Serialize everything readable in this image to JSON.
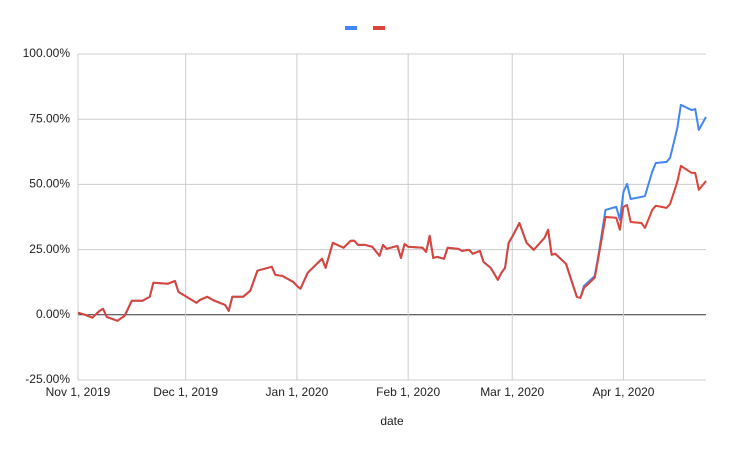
{
  "chart_data": {
    "type": "line",
    "x_label": "date",
    "x": [
      "2019-11-01",
      "2019-11-03",
      "2019-11-05",
      "2019-11-07",
      "2019-11-08",
      "2019-11-09",
      "2019-11-12",
      "2019-11-14",
      "2019-11-16",
      "2019-11-19",
      "2019-11-21",
      "2019-11-22",
      "2019-11-26",
      "2019-11-28",
      "2019-11-29",
      "2019-12-04",
      "2019-12-05",
      "2019-12-07",
      "2019-12-09",
      "2019-12-12",
      "2019-12-13",
      "2019-12-14",
      "2019-12-17",
      "2019-12-19",
      "2019-12-21",
      "2019-12-25",
      "2019-12-26",
      "2019-12-28",
      "2019-12-31",
      "2020-01-01",
      "2020-01-02",
      "2020-01-04",
      "2020-01-08",
      "2020-01-09",
      "2020-01-11",
      "2020-01-14",
      "2020-01-16",
      "2020-01-17",
      "2020-01-18",
      "2020-01-20",
      "2020-01-22",
      "2020-01-24",
      "2020-01-25",
      "2020-01-26",
      "2020-01-29",
      "2020-01-30",
      "2020-01-31",
      "2020-02-01",
      "2020-02-05",
      "2020-02-06",
      "2020-02-07",
      "2020-02-08",
      "2020-02-09",
      "2020-02-11",
      "2020-02-12",
      "2020-02-15",
      "2020-02-16",
      "2020-02-18",
      "2020-02-19",
      "2020-02-21",
      "2020-02-22",
      "2020-02-24",
      "2020-02-26",
      "2020-02-27",
      "2020-02-28",
      "2020-02-29",
      "2020-03-01",
      "2020-03-03",
      "2020-03-05",
      "2020-03-07",
      "2020-03-10",
      "2020-03-11",
      "2020-03-12",
      "2020-03-13",
      "2020-03-16",
      "2020-03-17",
      "2020-03-19",
      "2020-03-20",
      "2020-03-21",
      "2020-03-24",
      "2020-03-25",
      "2020-03-27",
      "2020-03-30",
      "2020-03-31",
      "2020-04-01",
      "2020-04-02",
      "2020-04-03",
      "2020-04-06",
      "2020-04-07",
      "2020-04-09",
      "2020-04-10",
      "2020-04-13",
      "2020-04-14",
      "2020-04-16",
      "2020-04-17",
      "2020-04-20",
      "2020-04-21",
      "2020-04-22",
      "2020-04-24"
    ],
    "series": [
      {
        "color": "#4285f4",
        "values": [
          0.8,
          0,
          -1.1,
          1.5,
          2.3,
          -0.8,
          -2.3,
          -0.4,
          5.4,
          5.4,
          6.9,
          12.3,
          11.9,
          13,
          8.8,
          4.6,
          5.7,
          6.9,
          5.4,
          3.8,
          1.5,
          6.9,
          6.9,
          9.2,
          16.9,
          18.4,
          15.3,
          14.9,
          12.6,
          11.1,
          10,
          16.1,
          21.5,
          18,
          27.6,
          25.7,
          28.4,
          28.4,
          26.8,
          26.8,
          26.1,
          22.6,
          26.8,
          25.3,
          26.4,
          21.8,
          27.2,
          26.1,
          25.7,
          24.1,
          30.3,
          21.8,
          22.2,
          21.5,
          25.7,
          25.3,
          24.5,
          24.9,
          23.4,
          24.5,
          20.3,
          18,
          13.4,
          16.1,
          18,
          27.6,
          29.9,
          35.2,
          27.6,
          24.9,
          29.5,
          32.6,
          23,
          23.4,
          19.5,
          15.3,
          6.9,
          6.5,
          11.1,
          14.9,
          22.6,
          40.2,
          41.4,
          36.4,
          47.1,
          50.2,
          44.4,
          45.2,
          45.6,
          54.8,
          58.2,
          58.6,
          60.2,
          71.6,
          80.5,
          78.5,
          78.9,
          70.9,
          75.9
        ]
      },
      {
        "color": "#db4437",
        "values": [
          0.8,
          0,
          -1.1,
          1.5,
          2.3,
          -0.8,
          -2.3,
          -0.4,
          5.4,
          5.4,
          6.9,
          12.3,
          11.9,
          13,
          8.8,
          4.6,
          5.7,
          6.9,
          5.4,
          3.8,
          1.5,
          6.9,
          6.9,
          9.2,
          16.9,
          18.4,
          15.3,
          14.9,
          12.6,
          11.1,
          10,
          16.1,
          21.5,
          18,
          27.6,
          25.7,
          28.4,
          28.4,
          26.8,
          26.8,
          26.1,
          22.6,
          26.8,
          25.3,
          26.4,
          21.8,
          27.2,
          26.1,
          25.7,
          24.1,
          30.3,
          21.8,
          22.2,
          21.5,
          25.7,
          25.3,
          24.5,
          24.9,
          23.4,
          24.5,
          20.3,
          18,
          13.4,
          16.1,
          18,
          27.6,
          29.9,
          35.2,
          27.6,
          24.9,
          29.5,
          32.6,
          23,
          23.4,
          19.5,
          15.3,
          6.9,
          6.5,
          10.3,
          14.2,
          21.8,
          37.5,
          37.2,
          32.6,
          41.4,
          42.1,
          35.6,
          35.2,
          33.3,
          40.2,
          41.8,
          41,
          42.5,
          51,
          57.1,
          54.4,
          54.4,
          47.9,
          51.3
        ]
      }
    ],
    "xlim": [
      "2019-11-01",
      "2020-04-24"
    ],
    "xticks": [
      {
        "value": "2019-11-01",
        "label": "Nov 1, 2019"
      },
      {
        "value": "2019-12-01",
        "label": "Dec 1, 2019"
      },
      {
        "value": "2020-01-01",
        "label": "Jan 1, 2020"
      },
      {
        "value": "2020-02-01",
        "label": "Feb 1, 2020"
      },
      {
        "value": "2020-03-01",
        "label": "Mar 1, 2020"
      },
      {
        "value": "2020-04-01",
        "label": "Apr 1, 2020"
      }
    ],
    "ylim": [
      -25,
      100
    ],
    "yticks": [
      {
        "value": -25,
        "label": "-25.00%"
      },
      {
        "value": 0,
        "label": "0.00%"
      },
      {
        "value": 25,
        "label": "25.00%"
      },
      {
        "value": 50,
        "label": "50.00%"
      },
      {
        "value": 75,
        "label": "75.00%"
      },
      {
        "value": 100,
        "label": "100.00%"
      }
    ],
    "grid": true,
    "legend": "top"
  }
}
